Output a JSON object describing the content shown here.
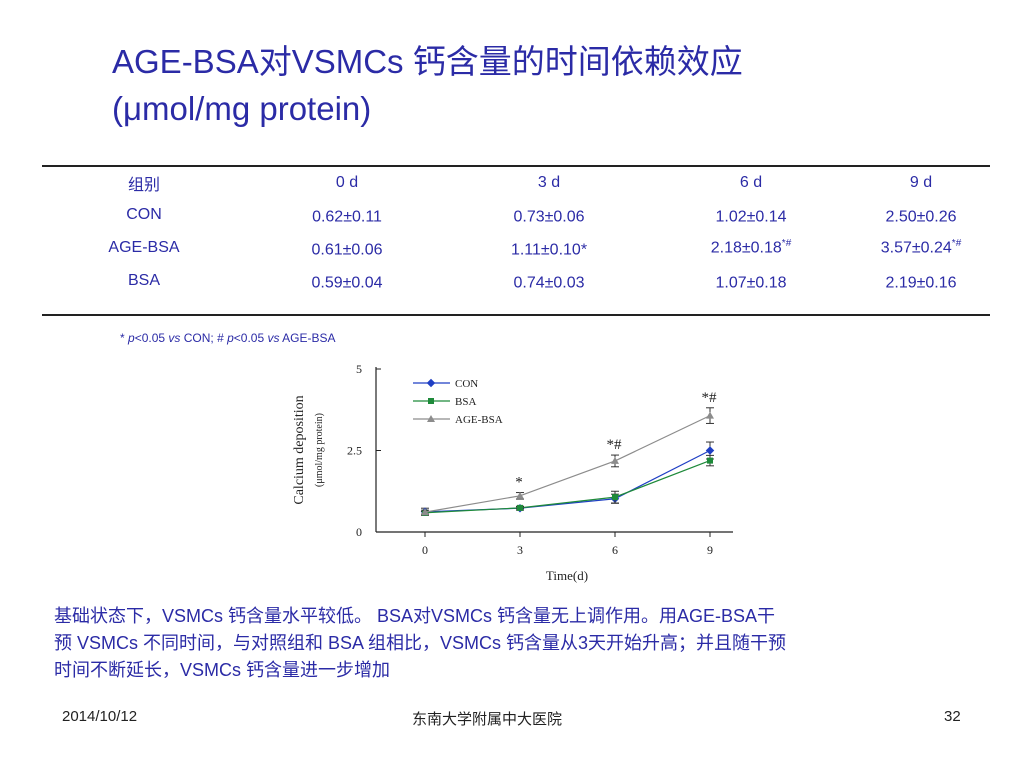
{
  "slide": {
    "title_line1": "AGE-BSA对VSMCs 钙含量的时间依赖效应",
    "title_line2": "(μmol/mg protein)",
    "footnote": {
      "star": "*",
      "p1": "p",
      "lt1": "<0.05 ",
      "vs1": "vs",
      "con": " CON; # ",
      "p2": "p",
      "lt2": "<0.05 ",
      "vs2": "vs",
      "agebsa": " AGE-BSA"
    },
    "caption_line1": "基础状态下，VSMCs 钙含量水平较低。 BSA对VSMCs 钙含量无上调作用。用AGE-BSA干",
    "caption_line2": "预 VSMCs 不同时间，与对照组和 BSA 组相比，VSMCs 钙含量从3天开始升高；并且随干预",
    "caption_line3": "时间不断延长，VSMCs 钙含量进一步增加",
    "footer_date": "2014/10/12",
    "footer_org": "东南大学附属中大医院",
    "footer_page": "32"
  },
  "table": {
    "headers": [
      "组别",
      "0 d",
      "3 d",
      "6 d",
      "9 d"
    ],
    "rows": [
      {
        "group": "CON",
        "cells": [
          {
            "v": "0.62±0.11",
            "sup": ""
          },
          {
            "v": "0.73±0.06",
            "sup": ""
          },
          {
            "v": "1.02±0.14",
            "sup": ""
          },
          {
            "v": "2.50±0.26",
            "sup": ""
          }
        ]
      },
      {
        "group": "AGE-BSA",
        "cells": [
          {
            "v": "0.61±0.06",
            "sup": ""
          },
          {
            "v": "1.11±0.10*",
            "sup": ""
          },
          {
            "v": "2.18±0.18",
            "sup": "*#"
          },
          {
            "v": "3.57±0.24",
            "sup": "*#"
          }
        ]
      },
      {
        "group": "BSA",
        "cells": [
          {
            "v": "0.59±0.04",
            "sup": ""
          },
          {
            "v": "0.74±0.03",
            "sup": ""
          },
          {
            "v": "1.07±0.18",
            "sup": ""
          },
          {
            "v": "2.19±0.16",
            "sup": ""
          }
        ]
      }
    ]
  },
  "chart_data": {
    "type": "line",
    "x": [
      0,
      3,
      6,
      9
    ],
    "x_ticks": [
      "0",
      "3",
      "6",
      "9"
    ],
    "y_ticks": [
      "0",
      "2.5",
      "5"
    ],
    "ylim": [
      0,
      5
    ],
    "xlabel": "Time(d)",
    "ylabel": "Calcium deposition",
    "ylabel_sub": "(μmol/mg protein)",
    "legend_position": "top-left",
    "series": [
      {
        "name": "CON",
        "color": "#1f3fc4",
        "marker": "diamond",
        "values": [
          0.62,
          0.73,
          1.02,
          2.5
        ],
        "errors": [
          0.11,
          0.06,
          0.14,
          0.26
        ],
        "annotations": [
          "",
          "",
          "",
          ""
        ]
      },
      {
        "name": "BSA",
        "color": "#1e8a3a",
        "marker": "square",
        "values": [
          0.59,
          0.74,
          1.07,
          2.19
        ],
        "errors": [
          0.04,
          0.03,
          0.18,
          0.16
        ],
        "annotations": [
          "",
          "",
          "",
          ""
        ]
      },
      {
        "name": "AGE-BSA",
        "color": "#8c8c8c",
        "marker": "triangle",
        "values": [
          0.61,
          1.11,
          2.18,
          3.57
        ],
        "errors": [
          0.06,
          0.1,
          0.18,
          0.24
        ],
        "annotations": [
          "",
          "*",
          "*#",
          "*#"
        ]
      }
    ]
  }
}
